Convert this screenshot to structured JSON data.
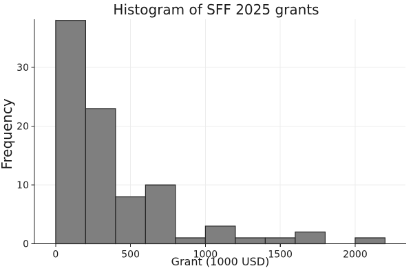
{
  "figure": {
    "background": "#ffffff"
  },
  "chart": {
    "title": "Histogram of SFF 2025 grants",
    "xlabel": "Grant (1000 USD)",
    "ylabel": "Frequency",
    "colors": {
      "bar_fill": "#7f7f7f",
      "bar_edge": "#262626",
      "grid": "#ececec",
      "axis": "#262626",
      "text": "#1a1a1a"
    }
  },
  "chart_data": {
    "type": "bar",
    "subtype": "histogram",
    "title": "Histogram of SFF 2025 grants",
    "xlabel": "Grant (1000 USD)",
    "ylabel": "Frequency",
    "bin_width": 200,
    "bin_edges": [
      0,
      200,
      400,
      600,
      800,
      1000,
      1200,
      1400,
      1600,
      1800,
      2000,
      2200
    ],
    "counts": [
      38,
      23,
      8,
      10,
      1,
      3,
      1,
      1,
      2,
      0,
      1
    ],
    "xticks": [
      0,
      500,
      1000,
      1500,
      2000
    ],
    "yticks": [
      0,
      10,
      20,
      30
    ],
    "xlim": [
      -142,
      2336
    ],
    "ylim": [
      0,
      38.2
    ],
    "grid": true,
    "legend": false
  }
}
